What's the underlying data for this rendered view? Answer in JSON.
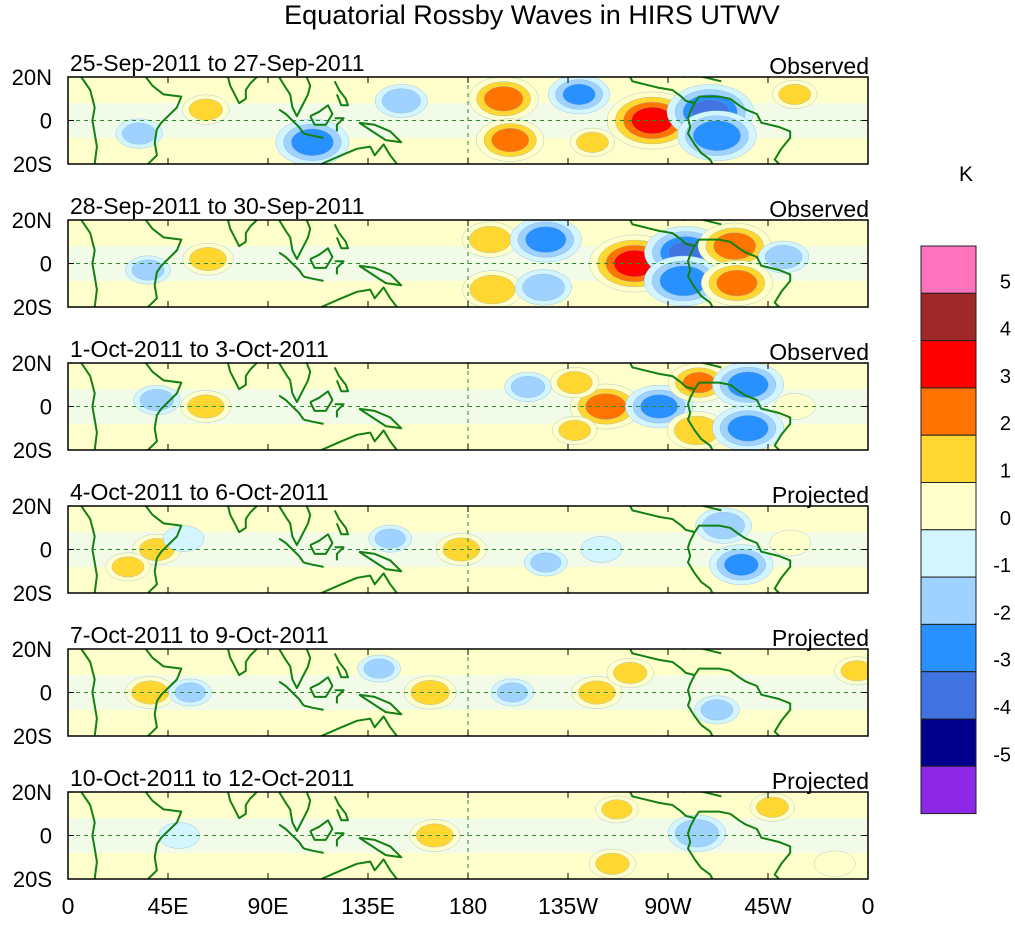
{
  "chart_data": {
    "type": "heatmap",
    "title": "Equatorial Rossby Waves in HIRS UTWV",
    "colorbar": {
      "unit_label": "K",
      "levels": [
        "5",
        "4",
        "3",
        "2",
        "1",
        "0",
        "-1",
        "-2",
        "-3",
        "-4",
        "-5"
      ],
      "colors": [
        "#ff73bd",
        "#a02828",
        "#ff0000",
        "#ff7300",
        "#ffd730",
        "#ffffcc",
        "#d2f5ff",
        "#a0d2ff",
        "#2891ff",
        "#4173e1",
        "#00008c",
        "#8c28e6"
      ]
    },
    "x_axis": {
      "range_deg": [
        0,
        360
      ],
      "ticks": [
        {
          "lon": 0,
          "label": "0"
        },
        {
          "lon": 45,
          "label": "45E"
        },
        {
          "lon": 90,
          "label": "90E"
        },
        {
          "lon": 135,
          "label": "135E"
        },
        {
          "lon": 180,
          "label": "180"
        },
        {
          "lon": 225,
          "label": "135W"
        },
        {
          "lon": 270,
          "label": "90W"
        },
        {
          "lon": 315,
          "label": "45W"
        },
        {
          "lon": 360,
          "label": "0"
        }
      ]
    },
    "y_axis": {
      "range_deg": [
        -20,
        20
      ],
      "ticks": [
        {
          "lat": 20,
          "label": "20N"
        },
        {
          "lat": 0,
          "label": "0"
        },
        {
          "lat": -20,
          "label": "20S"
        }
      ]
    },
    "panels": [
      {
        "date_range": "25-Sep-2011 to 27-Sep-2011",
        "status": "Observed",
        "anomalies": [
          {
            "lon": 196,
            "lat": 10,
            "value": 2.5
          },
          {
            "lon": 199,
            "lat": -9,
            "value": 2.4
          },
          {
            "lon": 263,
            "lat": 0,
            "value": 3.6
          },
          {
            "lon": 289,
            "lat": 4,
            "value": -3.4
          },
          {
            "lon": 292,
            "lat": -7,
            "value": -3.0
          },
          {
            "lon": 110,
            "lat": -10,
            "value": -2.7
          },
          {
            "lon": 62,
            "lat": 5,
            "value": 1.3
          },
          {
            "lon": 230,
            "lat": 12,
            "value": -2.1
          },
          {
            "lon": 150,
            "lat": 9,
            "value": -1.6
          },
          {
            "lon": 327,
            "lat": 12,
            "value": 1.2
          },
          {
            "lon": 32,
            "lat": -6,
            "value": -1.3
          },
          {
            "lon": 236,
            "lat": -10,
            "value": 1.2
          }
        ]
      },
      {
        "date_range": "28-Sep-2011 to 30-Sep-2011",
        "status": "Observed",
        "anomalies": [
          {
            "lon": 255,
            "lat": 0,
            "value": 3.6
          },
          {
            "lon": 278,
            "lat": 5,
            "value": -3.2
          },
          {
            "lon": 277,
            "lat": -8,
            "value": -3.0
          },
          {
            "lon": 300,
            "lat": 8,
            "value": 2.7
          },
          {
            "lon": 301,
            "lat": -9,
            "value": 2.6
          },
          {
            "lon": 63,
            "lat": 2,
            "value": 1.5
          },
          {
            "lon": 190,
            "lat": 11,
            "value": 1.8
          },
          {
            "lon": 191,
            "lat": -12,
            "value": 2.0
          },
          {
            "lon": 215,
            "lat": 11,
            "value": -2.6
          },
          {
            "lon": 214,
            "lat": -11,
            "value": -1.8
          },
          {
            "lon": 322,
            "lat": 3,
            "value": -1.5
          },
          {
            "lon": 36,
            "lat": -3,
            "value": -1.2
          }
        ]
      },
      {
        "date_range": "1-Oct-2011 to 3-Oct-2011",
        "status": "Observed",
        "anomalies": [
          {
            "lon": 242,
            "lat": 0,
            "value": 2.6
          },
          {
            "lon": 266,
            "lat": 0,
            "value": -2.4
          },
          {
            "lon": 284,
            "lat": 11,
            "value": 2.1
          },
          {
            "lon": 283,
            "lat": -11,
            "value": 2.0
          },
          {
            "lon": 306,
            "lat": 10,
            "value": -2.6
          },
          {
            "lon": 306,
            "lat": -10,
            "value": -2.6
          },
          {
            "lon": 62,
            "lat": 0,
            "value": 1.5
          },
          {
            "lon": 228,
            "lat": 11,
            "value": 1.4
          },
          {
            "lon": 228,
            "lat": -11,
            "value": 1.2
          },
          {
            "lon": 207,
            "lat": 9,
            "value": -1.3
          },
          {
            "lon": 40,
            "lat": 3,
            "value": -1.3
          },
          {
            "lon": 327,
            "lat": 0,
            "value": 1.0
          }
        ]
      },
      {
        "date_range": "4-Oct-2011 to 6-Oct-2011",
        "status": "Projected",
        "anomalies": [
          {
            "lon": 40,
            "lat": 0,
            "value": 1.4
          },
          {
            "lon": 177,
            "lat": 0,
            "value": 1.5
          },
          {
            "lon": 303,
            "lat": -7,
            "value": -2.2
          },
          {
            "lon": 295,
            "lat": 11,
            "value": -1.8
          },
          {
            "lon": 27,
            "lat": -8,
            "value": 1.2
          },
          {
            "lon": 52,
            "lat": 5,
            "value": -1.0
          },
          {
            "lon": 145,
            "lat": 5,
            "value": -1.1
          },
          {
            "lon": 215,
            "lat": -6,
            "value": -1.1
          },
          {
            "lon": 240,
            "lat": 0,
            "value": -1.0
          },
          {
            "lon": 325,
            "lat": 3,
            "value": 1.0
          }
        ]
      },
      {
        "date_range": "7-Oct-2011 to 9-Oct-2011",
        "status": "Projected",
        "anomalies": [
          {
            "lon": 37,
            "lat": 0,
            "value": 1.5
          },
          {
            "lon": 163,
            "lat": 0,
            "value": 1.6
          },
          {
            "lon": 238,
            "lat": 0,
            "value": 1.5
          },
          {
            "lon": 253,
            "lat": 9,
            "value": 1.3
          },
          {
            "lon": 55,
            "lat": 0,
            "value": -1.1
          },
          {
            "lon": 200,
            "lat": 0,
            "value": -1.1
          },
          {
            "lon": 292,
            "lat": -8,
            "value": -1.2
          },
          {
            "lon": 355,
            "lat": 10,
            "value": 1.2
          },
          {
            "lon": 140,
            "lat": 11,
            "value": -1.1
          }
        ]
      },
      {
        "date_range": "10-Oct-2011 to 12-Oct-2011",
        "status": "Projected",
        "anomalies": [
          {
            "lon": 165,
            "lat": 0,
            "value": 1.5
          },
          {
            "lon": 283,
            "lat": 1,
            "value": -1.9
          },
          {
            "lon": 245,
            "lat": -13,
            "value": 1.3
          },
          {
            "lon": 247,
            "lat": 12,
            "value": 1.1
          },
          {
            "lon": 317,
            "lat": 13,
            "value": 1.2
          },
          {
            "lon": 50,
            "lat": 0,
            "value": -1.0
          },
          {
            "lon": 345,
            "lat": -13,
            "value": 1.0
          }
        ]
      }
    ]
  }
}
